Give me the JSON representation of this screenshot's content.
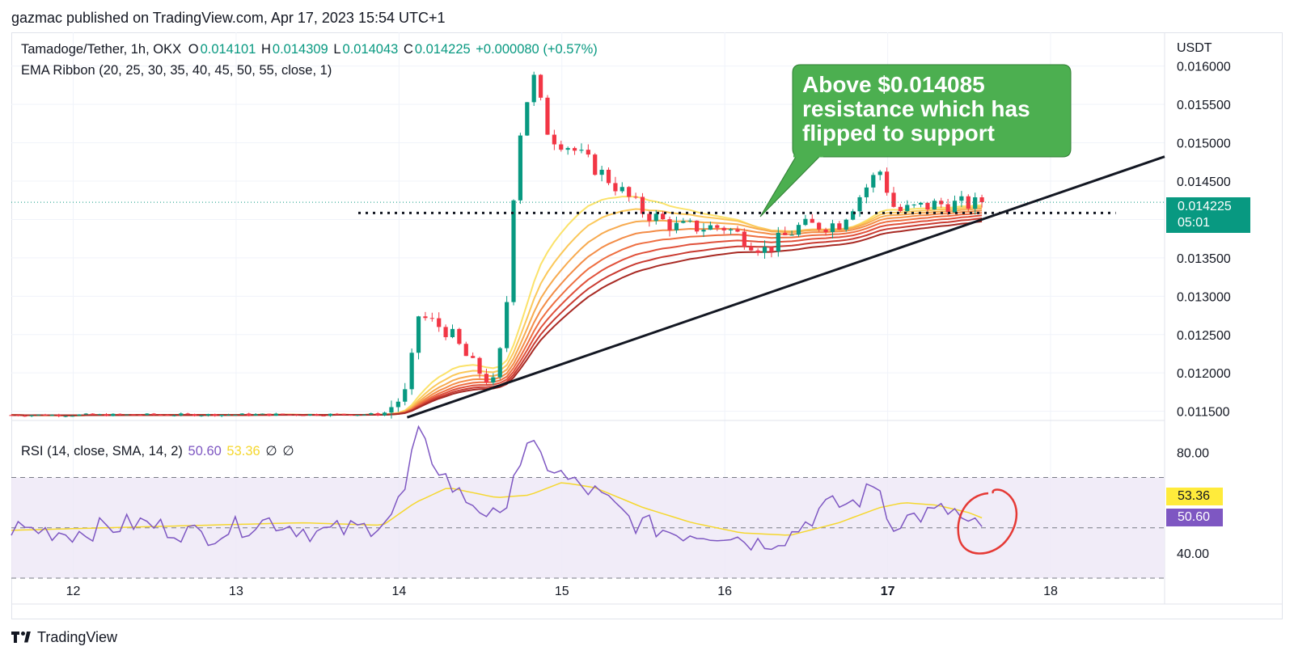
{
  "header": {
    "credit": "gazmac published on TradingView.com, Apr 17, 2023 15:54 UTC+1"
  },
  "legend": {
    "symbol": "Tamadoge/Tether, 1h, OKX",
    "o_label": "O",
    "o": "0.014101",
    "h_label": "H",
    "h": "0.014309",
    "l_label": "L",
    "l": "0.014043",
    "c_label": "C",
    "c": "0.014225",
    "change": "+0.000080 (+0.57%)",
    "indicator": "EMA Ribbon (20, 25, 30, 35, 40, 45, 50, 55, close, 1)"
  },
  "rsi_legend": {
    "label": "RSI (14, close, SMA, 14, 2)",
    "rsi": "50.60",
    "sma": "53.36",
    "na1": "∅",
    "na2": "∅"
  },
  "callout": {
    "text": "Above $0.014085 resistance which has flipped to support"
  },
  "price_tag": {
    "price": "0.014225",
    "countdown": "05:01"
  },
  "rsi_tags": {
    "sma": "53.36",
    "rsi": "50.60"
  },
  "footer": {
    "brand": "TradingView",
    "logo_icon": "tradingview-logo-icon"
  },
  "colors": {
    "up": "#089981",
    "down": "#f23645",
    "rsi": "#7e57c2",
    "rsi_sma": "#f5d72e",
    "callout": "#4caf50"
  },
  "chart_data": {
    "type": "candlestick",
    "price_axis": {
      "unit": "USDT",
      "ticks": [
        "0.016000",
        "0.015500",
        "0.015000",
        "0.014500",
        "0.014000",
        "0.013500",
        "0.013000",
        "0.012500",
        "0.012000",
        "0.011500"
      ],
      "range": [
        0.01138,
        0.01644
      ]
    },
    "time_axis": {
      "ticks": [
        "12",
        "13",
        "14",
        "15",
        "16",
        "17",
        "18"
      ],
      "bold": "17",
      "range": [
        11.62,
        18.7
      ]
    },
    "key_points": [
      {
        "day": 11.62,
        "price": 0.01145
      },
      {
        "day": 13.9,
        "price": 0.01146
      },
      {
        "day": 14.05,
        "price": 0.01175
      },
      {
        "day": 14.12,
        "price": 0.01275
      },
      {
        "day": 14.3,
        "price": 0.01255
      },
      {
        "day": 14.45,
        "price": 0.0121
      },
      {
        "day": 14.58,
        "price": 0.01185
      },
      {
        "day": 14.65,
        "price": 0.01255
      },
      {
        "day": 14.72,
        "price": 0.0149
      },
      {
        "day": 14.82,
        "price": 0.0159
      },
      {
        "day": 14.92,
        "price": 0.0151
      },
      {
        "day": 15.05,
        "price": 0.01495
      },
      {
        "day": 15.3,
        "price": 0.0145
      },
      {
        "day": 15.5,
        "price": 0.0141
      },
      {
        "day": 15.7,
        "price": 0.0139
      },
      {
        "day": 16.0,
        "price": 0.0139
      },
      {
        "day": 16.25,
        "price": 0.0136
      },
      {
        "day": 16.45,
        "price": 0.0139
      },
      {
        "day": 16.7,
        "price": 0.01395
      },
      {
        "day": 16.95,
        "price": 0.01465
      },
      {
        "day": 17.05,
        "price": 0.0141
      },
      {
        "day": 17.3,
        "price": 0.0142
      },
      {
        "day": 17.6,
        "price": 0.0142
      }
    ],
    "last_price": 0.014225,
    "resistance_level": 0.014085,
    "trendline": {
      "from": {
        "day": 14.05,
        "price": 0.01142
      },
      "to": {
        "day": 18.7,
        "price": 0.01482
      }
    },
    "ema_ribbon_periods": [
      20,
      25,
      30,
      35,
      40,
      45,
      50,
      55
    ],
    "rsi": {
      "ticks": [
        "80.00",
        "40.00"
      ],
      "range": [
        30,
        92
      ],
      "band": [
        30,
        70
      ],
      "midline": 50,
      "last_rsi": 50.6,
      "last_sma": 53.36,
      "rsi_points": [
        [
          11.62,
          50
        ],
        [
          12.0,
          48
        ],
        [
          12.4,
          52
        ],
        [
          12.8,
          47
        ],
        [
          13.2,
          53
        ],
        [
          13.5,
          48
        ],
        [
          13.8,
          50
        ],
        [
          13.95,
          55
        ],
        [
          14.05,
          66
        ],
        [
          14.1,
          88
        ],
        [
          14.2,
          78
        ],
        [
          14.35,
          64
        ],
        [
          14.5,
          58
        ],
        [
          14.62,
          52
        ],
        [
          14.7,
          72
        ],
        [
          14.8,
          82
        ],
        [
          14.9,
          76
        ],
        [
          15.05,
          68
        ],
        [
          15.2,
          64
        ],
        [
          15.45,
          52
        ],
        [
          15.7,
          48
        ],
        [
          16.0,
          48
        ],
        [
          16.2,
          44
        ],
        [
          16.4,
          47
        ],
        [
          16.6,
          58
        ],
        [
          16.8,
          60
        ],
        [
          16.95,
          68
        ],
        [
          17.0,
          52
        ],
        [
          17.2,
          55
        ],
        [
          17.4,
          57
        ],
        [
          17.5,
          50
        ],
        [
          17.6,
          50.6
        ]
      ],
      "sma_points": [
        [
          11.62,
          49
        ],
        [
          12.2,
          50
        ],
        [
          12.8,
          51
        ],
        [
          13.4,
          52
        ],
        [
          13.9,
          51
        ],
        [
          14.1,
          60
        ],
        [
          14.3,
          66
        ],
        [
          14.6,
          62
        ],
        [
          14.8,
          63
        ],
        [
          15.0,
          68
        ],
        [
          15.2,
          66
        ],
        [
          15.5,
          58
        ],
        [
          15.8,
          52
        ],
        [
          16.1,
          48
        ],
        [
          16.4,
          47
        ],
        [
          16.7,
          52
        ],
        [
          16.95,
          58
        ],
        [
          17.1,
          60
        ],
        [
          17.3,
          59
        ],
        [
          17.5,
          56
        ],
        [
          17.6,
          53.36
        ]
      ]
    }
  }
}
